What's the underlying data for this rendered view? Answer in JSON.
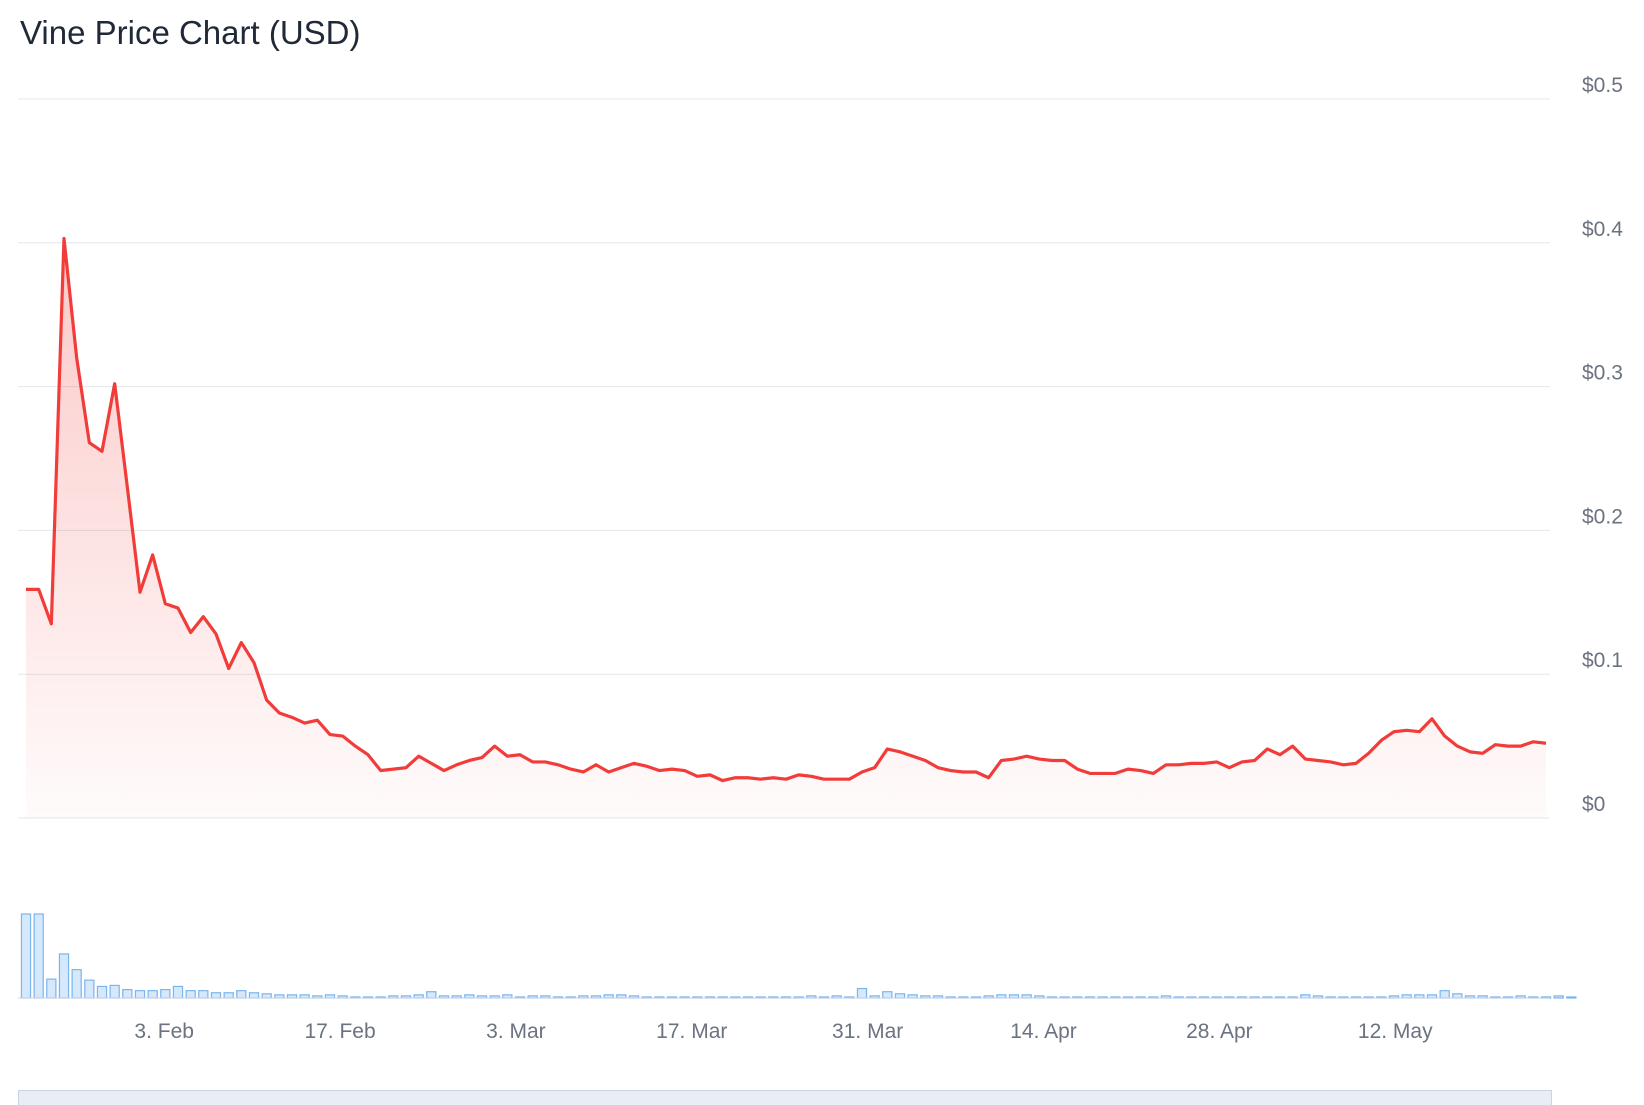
{
  "chart_data": {
    "type": "line",
    "title": "Vine Price Chart (USD)",
    "xlabel": "",
    "ylabel": "",
    "ylim": [
      0,
      0.5
    ],
    "yticks": [
      "$0",
      "$0.1",
      "$0.2",
      "$0.3",
      "$0.4",
      "$0.5"
    ],
    "xticks": [
      "3. Feb",
      "17. Feb",
      "3. Mar",
      "17. Mar",
      "31. Mar",
      "14. Apr",
      "28. Apr",
      "12. May"
    ],
    "x_start": "2025-01-23",
    "x_end": "2025-05-24",
    "grid": true,
    "colors": {
      "price_line": "#f23c3a",
      "volume_bar": "#7cb5ec"
    },
    "series": [
      {
        "type": "line",
        "values": [
          0.159,
          0.159,
          0.135,
          0.403,
          0.32,
          0.261,
          0.255,
          0.302,
          0.23,
          0.157,
          0.183,
          0.149,
          0.146,
          0.129,
          0.14,
          0.128,
          0.104,
          0.122,
          0.108,
          0.082,
          0.073,
          0.07,
          0.066,
          0.068,
          0.058,
          0.057,
          0.05,
          0.044,
          0.033,
          0.034,
          0.035,
          0.043,
          0.038,
          0.033,
          0.037,
          0.04,
          0.042,
          0.05,
          0.043,
          0.044,
          0.039,
          0.039,
          0.037,
          0.034,
          0.032,
          0.037,
          0.032,
          0.035,
          0.038,
          0.036,
          0.033,
          0.034,
          0.033,
          0.029,
          0.03,
          0.026,
          0.028,
          0.028,
          0.027,
          0.028,
          0.027,
          0.03,
          0.029,
          0.027,
          0.027,
          0.027,
          0.032,
          0.035,
          0.048,
          0.046,
          0.043,
          0.04,
          0.035,
          0.033,
          0.032,
          0.032,
          0.028,
          0.04,
          0.041,
          0.043,
          0.041,
          0.04,
          0.04,
          0.034,
          0.031,
          0.031,
          0.031,
          0.034,
          0.033,
          0.031,
          0.037,
          0.037,
          0.038,
          0.038,
          0.039,
          0.035,
          0.039,
          0.04,
          0.048,
          0.044,
          0.05,
          0.041,
          0.04,
          0.039,
          0.037,
          0.038,
          0.045,
          0.054,
          0.06,
          0.061,
          0.06,
          0.069,
          0.057,
          0.05,
          0.046,
          0.045,
          0.051,
          0.05,
          0.05,
          0.053,
          0.052
        ]
      },
      {
        "type": "column",
        "values": [
          80,
          80,
          18,
          42,
          27,
          17,
          11,
          12,
          8,
          7,
          7,
          8,
          11,
          7,
          7,
          5,
          5,
          7,
          5,
          4,
          3,
          3,
          3,
          2,
          3,
          2,
          1,
          1,
          1,
          2,
          2,
          3,
          6,
          2,
          2,
          3,
          2,
          2,
          3,
          1,
          2,
          2,
          1,
          1,
          2,
          2,
          3,
          3,
          2,
          1,
          1,
          1,
          1,
          1,
          1,
          1,
          1,
          1,
          1,
          1,
          1,
          1,
          2,
          1,
          2,
          1,
          9,
          2,
          6,
          4,
          3,
          2,
          2,
          1,
          1,
          1,
          2,
          3,
          3,
          3,
          2,
          1,
          1,
          1,
          1,
          1,
          1,
          1,
          1,
          1,
          2,
          1,
          1,
          1,
          1,
          1,
          1,
          1,
          1,
          1,
          1,
          3,
          2,
          1,
          1,
          1,
          1,
          1,
          2,
          3,
          3,
          3,
          7,
          4,
          2,
          2,
          1,
          1,
          2,
          1,
          1,
          2,
          1
        ]
      }
    ]
  }
}
